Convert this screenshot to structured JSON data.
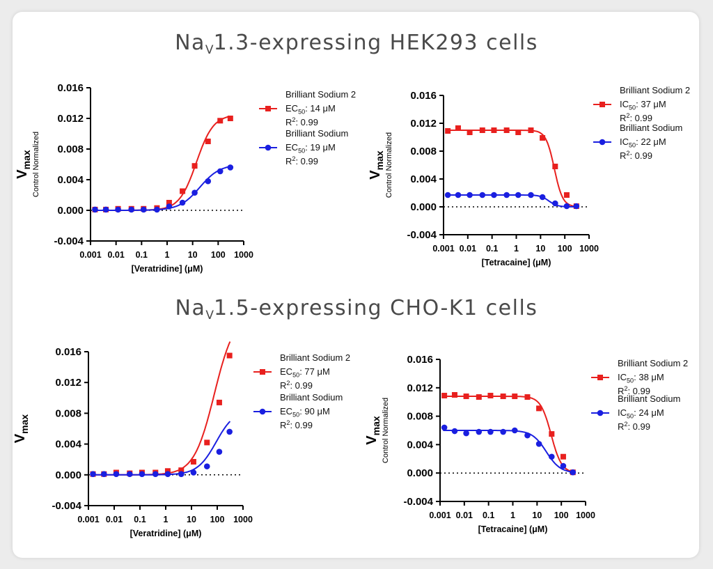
{
  "section_titles": [
    {
      "main": "Na",
      "sub": "V",
      "rest": "1.3-expressing HEK293 cells"
    },
    {
      "main": "Na",
      "sub": "V",
      "rest": "1.5-expressing CHO-K1 cells"
    }
  ],
  "colors": {
    "red": "#e8201e",
    "blue": "#1a1fe0"
  },
  "chart_data": [
    {
      "type": "scatter",
      "x_scale": "log",
      "xlabel": "[Veratridine] (μM)",
      "ylabel_main": "V",
      "ylabel_sub": "max",
      "ylabel_secondary": "Control Normalized",
      "ylim": [
        -0.004,
        0.016
      ],
      "xlim": [
        0.001,
        1000
      ],
      "x_ticks": [
        "0.001",
        "0.01",
        "0.1",
        "1",
        "10",
        "100",
        "1000"
      ],
      "y_ticks": [
        "-0.004",
        "0.000",
        "0.004",
        "0.008",
        "0.012",
        "0.016"
      ],
      "zero_line": "dotted",
      "series": [
        {
          "name": "Brilliant Sodium 2",
          "stat_label": "EC",
          "stat_sub": "50",
          "stat_value": ": 14 μM",
          "r2_label": "R",
          "r2_sup": "2",
          "r2_value": ": 0.99",
          "color": "red",
          "marker": "square",
          "curve_type": "increasing",
          "ec50": 14,
          "bottom": 0.0,
          "top": 0.0125,
          "hill": 1.3,
          "x": [
            0.0015,
            0.004,
            0.012,
            0.04,
            0.12,
            0.4,
            1.2,
            4,
            12,
            40,
            120,
            300
          ],
          "y": [
            0.0001,
            0.0001,
            0.0002,
            0.0002,
            0.0002,
            0.0003,
            0.001,
            0.0025,
            0.0058,
            0.009,
            0.0117,
            0.012
          ]
        },
        {
          "name": "Brilliant Sodium",
          "stat_label": "EC",
          "stat_sub": "50",
          "stat_value": ": 19 μM",
          "r2_label": "R",
          "r2_sup": "2",
          "r2_value": ": 0.99",
          "color": "blue",
          "marker": "circle",
          "curve_type": "increasing",
          "ec50": 19,
          "bottom": 0.0,
          "top": 0.006,
          "hill": 1.1,
          "x": [
            0.0015,
            0.004,
            0.012,
            0.04,
            0.12,
            0.4,
            1.2,
            4,
            12,
            40,
            120,
            300
          ],
          "y": [
            0.0001,
            0.0001,
            0.0001,
            0.0001,
            0.0001,
            0.0001,
            0.0005,
            0.001,
            0.0023,
            0.0038,
            0.0051,
            0.0056
          ]
        }
      ]
    },
    {
      "type": "scatter",
      "x_scale": "log",
      "xlabel": "[Tetracaine] (μM)",
      "ylabel_main": "V",
      "ylabel_sub": "max",
      "ylabel_secondary": "Control Normalized",
      "ylim": [
        -0.004,
        0.016
      ],
      "xlim": [
        0.001,
        1000
      ],
      "x_ticks": [
        "0.001",
        "0.01",
        "0.1",
        "1",
        "10",
        "100",
        "1000"
      ],
      "y_ticks": [
        "-0.004",
        "0.000",
        "0.004",
        "0.008",
        "0.012",
        "0.016"
      ],
      "zero_line": "dotted",
      "series": [
        {
          "name": "Brilliant Sodium 2",
          "stat_label": "IC",
          "stat_sub": "50",
          "stat_value": ": 37 μM",
          "r2_label": "R",
          "r2_sup": "2",
          "r2_value": ": 0.99",
          "color": "red",
          "marker": "square",
          "curve_type": "decreasing",
          "ec50": 37,
          "bottom": 0.0,
          "top": 0.011,
          "hill": 2.5,
          "x": [
            0.0015,
            0.004,
            0.012,
            0.04,
            0.12,
            0.4,
            1.2,
            4,
            12,
            40,
            120,
            300
          ],
          "y": [
            0.0109,
            0.0113,
            0.0107,
            0.011,
            0.011,
            0.011,
            0.0107,
            0.011,
            0.0099,
            0.0058,
            0.0017,
            0.0001
          ]
        },
        {
          "name": "Brilliant Sodium",
          "stat_label": "IC",
          "stat_sub": "50",
          "stat_value": ": 22 μM",
          "r2_label": "R",
          "r2_sup": "2",
          "r2_value": ": 0.99",
          "color": "blue",
          "marker": "circle",
          "curve_type": "decreasing",
          "ec50": 22,
          "bottom": 0.0,
          "top": 0.0017,
          "hill": 2.5,
          "x": [
            0.0015,
            0.004,
            0.012,
            0.04,
            0.12,
            0.4,
            1.2,
            4,
            12,
            40,
            120,
            300
          ],
          "y": [
            0.0017,
            0.0017,
            0.0017,
            0.0017,
            0.0017,
            0.0017,
            0.0017,
            0.0017,
            0.0014,
            0.0005,
            0.0001,
            0.0001
          ]
        }
      ]
    },
    {
      "type": "scatter",
      "x_scale": "log",
      "xlabel": "[Veratridine] (μM)",
      "ylabel_main": "V",
      "ylabel_sub": "max",
      "ylabel_secondary": "",
      "ylim": [
        -0.004,
        0.016
      ],
      "xlim": [
        0.001,
        1000
      ],
      "x_ticks": [
        "0.001",
        "0.01",
        "0.1",
        "1",
        "10",
        "100",
        "1000"
      ],
      "y_ticks": [
        "-0.004",
        "0.000",
        "0.004",
        "0.008",
        "0.012",
        "0.016"
      ],
      "zero_line": "dotted",
      "series": [
        {
          "name": "Brilliant Sodium 2",
          "stat_label": "EC",
          "stat_sub": "50",
          "stat_value": ": 77 μM",
          "r2_label": "R",
          "r2_sup": "2",
          "r2_value": ": 0.99",
          "color": "red",
          "marker": "square",
          "curve_type": "increasing",
          "ec50": 77,
          "bottom": 0.0,
          "top": 0.021,
          "hill": 1.1,
          "x": [
            0.0015,
            0.004,
            0.012,
            0.04,
            0.12,
            0.4,
            1.2,
            4,
            12,
            40,
            120,
            300
          ],
          "y": [
            0.0001,
            0.0001,
            0.0003,
            0.0002,
            0.0003,
            0.0003,
            0.0005,
            0.0006,
            0.0017,
            0.0042,
            0.0094,
            0.0155
          ]
        },
        {
          "name": "Brilliant Sodium",
          "stat_label": "EC",
          "stat_sub": "50",
          "stat_value": ": 90 μM",
          "r2_label": "R",
          "r2_sup": "2",
          "r2_value": ": 0.99",
          "color": "blue",
          "marker": "circle",
          "curve_type": "increasing",
          "ec50": 90,
          "bottom": 0.0,
          "top": 0.0085,
          "hill": 1.2,
          "x": [
            0.0015,
            0.004,
            0.012,
            0.04,
            0.12,
            0.4,
            1.2,
            4,
            12,
            40,
            120,
            300
          ],
          "y": [
            0.0001,
            0.0001,
            0.0001,
            0.0001,
            0.0001,
            0.0001,
            0.0001,
            0.0001,
            0.0003,
            0.0011,
            0.003,
            0.0056
          ]
        }
      ]
    },
    {
      "type": "scatter",
      "x_scale": "log",
      "xlabel": "[Tetracaine] (μM)",
      "ylabel_main": "V",
      "ylabel_sub": "max",
      "ylabel_secondary": "Control Normalized",
      "ylim": [
        -0.004,
        0.016
      ],
      "xlim": [
        0.001,
        1000
      ],
      "x_ticks": [
        "0.001",
        "0.01",
        "0.1",
        "1",
        "10",
        "100",
        "1000"
      ],
      "y_ticks": [
        "-0.004",
        "0.000",
        "0.004",
        "0.008",
        "0.012",
        "0.016"
      ],
      "zero_line": "dotted",
      "series": [
        {
          "name": "Brilliant Sodium 2",
          "stat_label": "IC",
          "stat_sub": "50",
          "stat_value": ": 38 μM",
          "r2_label": "R",
          "r2_sup": "2",
          "r2_value": ": 0.99",
          "color": "red",
          "marker": "square",
          "curve_type": "decreasing",
          "ec50": 38,
          "bottom": 0.0,
          "top": 0.0108,
          "hill": 2.0,
          "x": [
            0.0015,
            0.004,
            0.012,
            0.04,
            0.12,
            0.4,
            1.2,
            4,
            12,
            40,
            120,
            300
          ],
          "y": [
            0.0109,
            0.011,
            0.0108,
            0.0107,
            0.0109,
            0.0108,
            0.0108,
            0.0107,
            0.0091,
            0.0055,
            0.0023,
            0.0001
          ]
        },
        {
          "name": "Brilliant Sodium",
          "stat_label": "IC",
          "stat_sub": "50",
          "stat_value": ": 24 μM",
          "r2_label": "R",
          "r2_sup": "2",
          "r2_value": ": 0.99",
          "color": "blue",
          "marker": "circle",
          "curve_type": "decreasing",
          "ec50": 24,
          "bottom": 0.0,
          "top": 0.006,
          "hill": 1.5,
          "x": [
            0.0015,
            0.004,
            0.012,
            0.04,
            0.12,
            0.4,
            1.2,
            4,
            12,
            40,
            120,
            300
          ],
          "y": [
            0.0064,
            0.0059,
            0.0056,
            0.0058,
            0.0058,
            0.0058,
            0.006,
            0.0053,
            0.0041,
            0.0023,
            0.001,
            0.0001
          ]
        }
      ]
    }
  ]
}
